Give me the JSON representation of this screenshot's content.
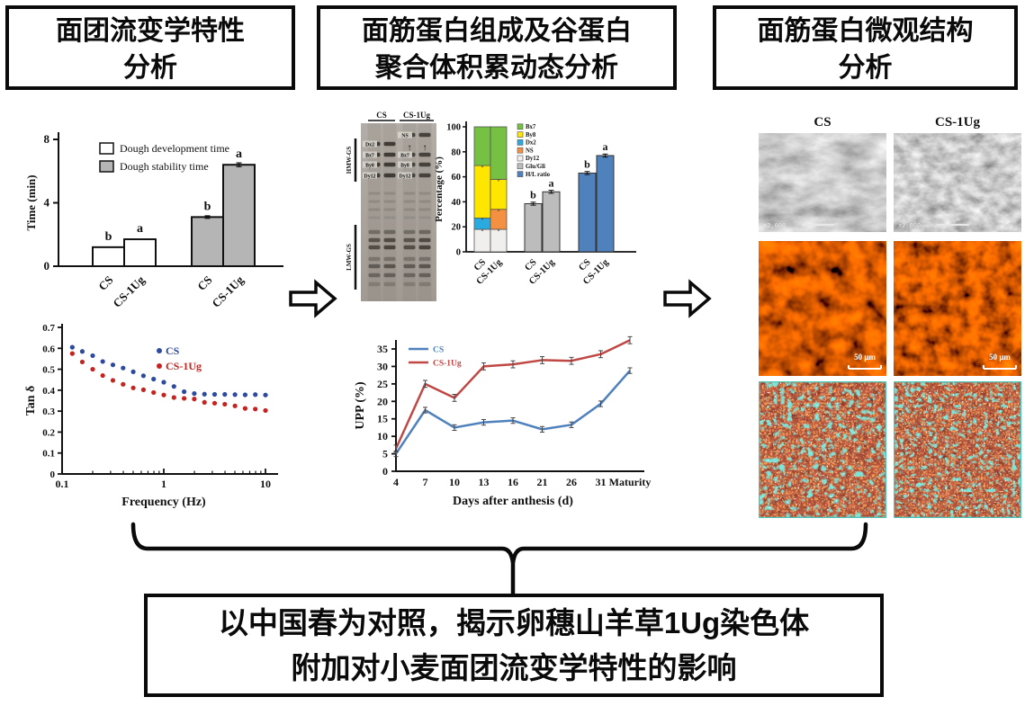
{
  "titles": {
    "box1": [
      "面团流变学特性",
      "分析"
    ],
    "box2": [
      "面筋蛋白组成及谷蛋白",
      "聚合体积累动态分析"
    ],
    "box3": [
      "面筋蛋白微观结构",
      "分析"
    ]
  },
  "conclusion": [
    "以中国春为对照，揭示卵穗山羊草1Ug染色体",
    "附加对小麦面团流变学特性的影响"
  ],
  "gel": {
    "lanes": [
      "CS",
      "CS-1Ug"
    ],
    "regions": [
      "HMW-GS",
      "LMW-GS"
    ],
    "lane1_bands": [
      "Dx2",
      "Bx7",
      "By8",
      "Dy12"
    ],
    "lane2_bands": [
      "NS",
      "Bx7",
      "By8",
      "Dy12"
    ]
  },
  "microscopy": {
    "col_headers": [
      "CS",
      "CS-1Ug"
    ],
    "sem_mag": "×2,000",
    "sem_scale": "10μm",
    "clsm_scale": "50 μm"
  },
  "chart_data": [
    {
      "id": "farinograph",
      "type": "bar",
      "title": "",
      "xlabel": "",
      "ylabel": "Time (min)",
      "ylim": [
        0,
        8
      ],
      "yticks": [
        0,
        4,
        8
      ],
      "groups": [
        {
          "legend": "Dough development time",
          "color": "#ffffff",
          "bars": [
            {
              "label": "CS",
              "value": 1.2,
              "sig": "b",
              "err": 0
            },
            {
              "label": "CS-1Ug",
              "value": 1.7,
              "sig": "a",
              "err": 0
            }
          ]
        },
        {
          "legend": "Dough stability time",
          "color": "#b5b5b5",
          "bars": [
            {
              "label": "CS",
              "value": 3.1,
              "sig": "b",
              "err": 0.08
            },
            {
              "label": "CS-1Ug",
              "value": 6.4,
              "sig": "a",
              "err": 0.12
            }
          ]
        }
      ]
    },
    {
      "id": "tan_delta",
      "type": "scatter",
      "xlabel": "Frequency (Hz)",
      "ylabel": "Tan δ",
      "xscale": "log",
      "xlim": [
        0.1,
        10
      ],
      "ylim": [
        0,
        0.7
      ],
      "yticks": [
        0,
        0.1,
        0.2,
        0.3,
        0.4,
        0.5,
        0.6,
        0.7
      ],
      "xticks_major": [
        0.1,
        1,
        10
      ],
      "series": [
        {
          "name": "CS",
          "color": "#2e4a9e",
          "x": [
            0.126,
            0.158,
            0.2,
            0.251,
            0.316,
            0.398,
            0.501,
            0.631,
            0.794,
            1.0,
            1.259,
            1.585,
            1.995,
            2.512,
            3.162,
            3.981,
            5.012,
            6.31,
            7.943,
            10
          ],
          "y": [
            0.605,
            0.585,
            0.565,
            0.537,
            0.521,
            0.506,
            0.488,
            0.469,
            0.453,
            0.438,
            0.418,
            0.393,
            0.384,
            0.381,
            0.38,
            0.38,
            0.379,
            0.378,
            0.379,
            0.377
          ]
        },
        {
          "name": "CS-1Ug",
          "color": "#c42320",
          "x": [
            0.126,
            0.158,
            0.2,
            0.251,
            0.316,
            0.398,
            0.501,
            0.631,
            0.794,
            1.0,
            1.259,
            1.585,
            1.995,
            2.512,
            3.162,
            3.981,
            5.012,
            6.31,
            7.943,
            10
          ],
          "y": [
            0.575,
            0.535,
            0.5,
            0.47,
            0.447,
            0.428,
            0.411,
            0.402,
            0.389,
            0.377,
            0.365,
            0.361,
            0.358,
            0.342,
            0.338,
            0.333,
            0.325,
            0.313,
            0.31,
            0.303
          ]
        }
      ]
    },
    {
      "id": "composition",
      "type": "stacked-bar",
      "ylabel": "Percentage (%)",
      "ylim": [
        0,
        100
      ],
      "yticks": [
        0,
        20,
        40,
        60,
        80,
        100
      ],
      "legend": [
        [
          "Bx7",
          "#76c043"
        ],
        [
          "By8",
          "#ffe600"
        ],
        [
          "Dx2",
          "#29abe2"
        ],
        [
          "NS",
          "#f49041"
        ],
        [
          "Dy12",
          "#f0efed"
        ],
        [
          "Glu/Gli",
          "#bcbcbc"
        ],
        [
          "H/L ratio",
          "#4f81bd"
        ]
      ],
      "stacked_bars": [
        {
          "label": "CS",
          "segments": [
            [
              "Dy12",
              18
            ],
            [
              "Dx2",
              9
            ],
            [
              "By8",
              42
            ],
            [
              "Bx7",
              31
            ]
          ]
        },
        {
          "label": "CS-1Ug",
          "segments": [
            [
              "Dy12",
              18
            ],
            [
              "NS",
              16
            ],
            [
              "By8",
              24
            ],
            [
              "Bx7",
              42
            ]
          ]
        }
      ],
      "glu_gli": {
        "color": "#bcbcbc",
        "bars": [
          {
            "label": "CS",
            "value": 38.5,
            "sig": "b"
          },
          {
            "label": "CS-1Ug",
            "value": 48,
            "sig": "a"
          }
        ]
      },
      "hl_ratio": {
        "color": "#4f81bd",
        "bars": [
          {
            "label": "CS",
            "value": 63,
            "sig": "b"
          },
          {
            "label": "CS-1Ug",
            "value": 77,
            "sig": "a"
          }
        ]
      }
    },
    {
      "id": "upp",
      "type": "line",
      "xlabel": "Days after anthesis (d)",
      "ylabel": "UPP (%)",
      "categories": [
        "4",
        "7",
        "10",
        "13",
        "16",
        "21",
        "26",
        "31",
        "Maturity"
      ],
      "yticks": [
        0,
        5,
        10,
        15,
        20,
        25,
        30,
        35
      ],
      "series": [
        {
          "name": "CS",
          "color": "#4f81bd",
          "err": 0.8,
          "values": [
            5,
            17.5,
            12.5,
            14,
            14.5,
            12,
            13.3,
            19.3,
            28.8
          ]
        },
        {
          "name": "CS-1Ug",
          "color": "#bf4845",
          "err": 1.0,
          "values": [
            6.5,
            25,
            21,
            30,
            30.6,
            31.8,
            31.6,
            33.5,
            37.5
          ]
        }
      ]
    }
  ]
}
